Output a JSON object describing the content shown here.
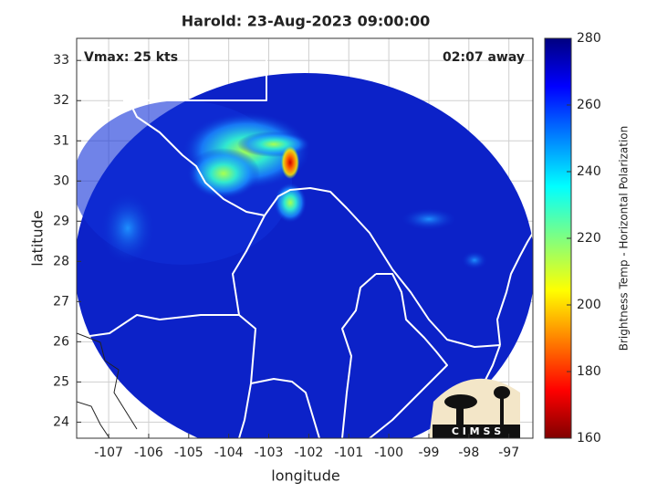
{
  "map": {
    "title": "Harold: 23-Aug-2023 09:00:00",
    "vmax_label": "Vmax: 25 kts",
    "time_label": "02:07 away",
    "xlabel": "longitude",
    "ylabel": "latitude",
    "xlim": [
      -107.8,
      -96.4
    ],
    "ylim": [
      23.6,
      33.55
    ],
    "xticks": [
      -107,
      -106,
      -105,
      -104,
      -103,
      -102,
      -101,
      -100,
      -99,
      -98,
      -97
    ],
    "yticks": [
      24,
      25,
      26,
      27,
      28,
      29,
      30,
      31,
      32,
      33
    ],
    "grid": true,
    "colorbar": {
      "label": "Brightness Temp - Horizontal Polarization",
      "lim": [
        160,
        280
      ],
      "ticks": [
        160,
        180,
        200,
        220,
        240,
        260,
        280
      ],
      "colormap": "jet"
    },
    "logo_text": "C I M S S"
  }
}
